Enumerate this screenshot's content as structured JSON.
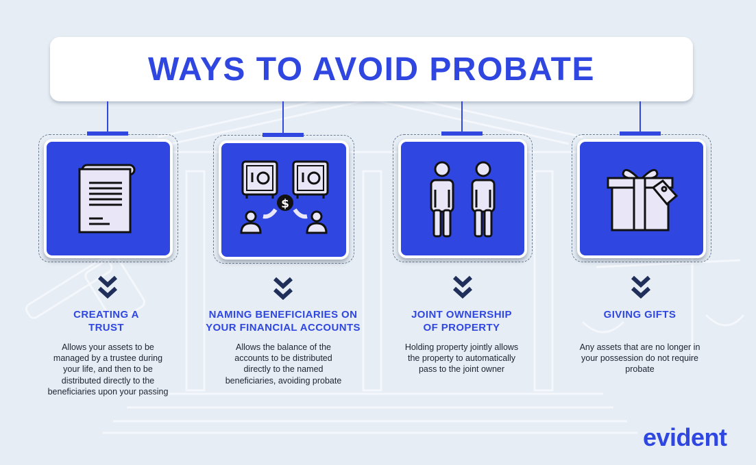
{
  "title": "WAYS TO AVOID PROBATE",
  "brand": "evident",
  "colors": {
    "accent": "#2f47e0",
    "background": "#e6edf4",
    "card_border": "#ffffff",
    "text": "#1c2230"
  },
  "items": [
    {
      "icon": "document-scroll-icon",
      "heading_line1": "CREATING A",
      "heading_line2": "TRUST",
      "desc": [
        "Allows your assets to be",
        "managed by a trustee during",
        "your life, and then to be",
        "distributed directly to the",
        "beneficiaries upon your passing"
      ]
    },
    {
      "icon": "safes-money-transfer-icon",
      "heading_line1": "NAMING BENEFICIARIES ON",
      "heading_line2": "YOUR FINANCIAL ACCOUNTS",
      "desc": [
        "Allows the balance of the",
        "accounts to be distributed",
        "directly to the named",
        "beneficiaries, avoiding probate"
      ]
    },
    {
      "icon": "two-people-icon",
      "heading_line1": "JOINT OWNERSHIP",
      "heading_line2": "OF PROPERTY",
      "desc": [
        "Holding property jointly allows",
        "the property to automatically",
        "pass to the joint owner"
      ]
    },
    {
      "icon": "gift-box-icon",
      "heading_line1": "GIVING GIFTS",
      "heading_line2": "",
      "desc": [
        "Any assets that are no longer in",
        "your possession do not require",
        "probate"
      ]
    }
  ]
}
